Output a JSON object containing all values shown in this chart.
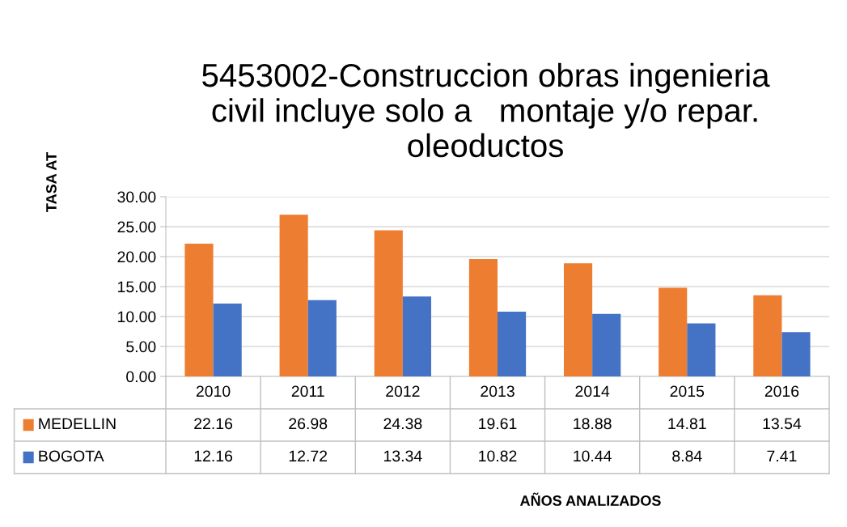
{
  "chart_data": {
    "type": "bar",
    "title": "5453002-Construccion obras ingenieria\ncivil incluye solo a   montaje y/o repar.\noleoductos",
    "annotations": [
      "AÑOS ANALIZADOS"
    ],
    "ylabel": "TASA AT",
    "categories": [
      "2010",
      "2011",
      "2012",
      "2013",
      "2014",
      "2015",
      "2016"
    ],
    "series": [
      {
        "name": "MEDELLIN",
        "color": "#ed7d31",
        "values": [
          22.16,
          26.98,
          24.38,
          19.61,
          18.88,
          14.81,
          13.54
        ]
      },
      {
        "name": "BOGOTA",
        "color": "#4472c4",
        "values": [
          12.16,
          12.72,
          13.34,
          10.82,
          10.44,
          8.84,
          7.41
        ]
      }
    ],
    "ylim": [
      0,
      30
    ],
    "yticks": [
      {
        "value": 0,
        "label": "0.00"
      },
      {
        "value": 5,
        "label": "5.00"
      },
      {
        "value": 10,
        "label": "10.00"
      },
      {
        "value": 15,
        "label": "15.00"
      },
      {
        "value": 20,
        "label": "20.00"
      },
      {
        "value": 25,
        "label": "25.00"
      },
      {
        "value": 30,
        "label": "30.00"
      }
    ],
    "grid": "y",
    "data_labels": true,
    "legend": "bottom"
  }
}
